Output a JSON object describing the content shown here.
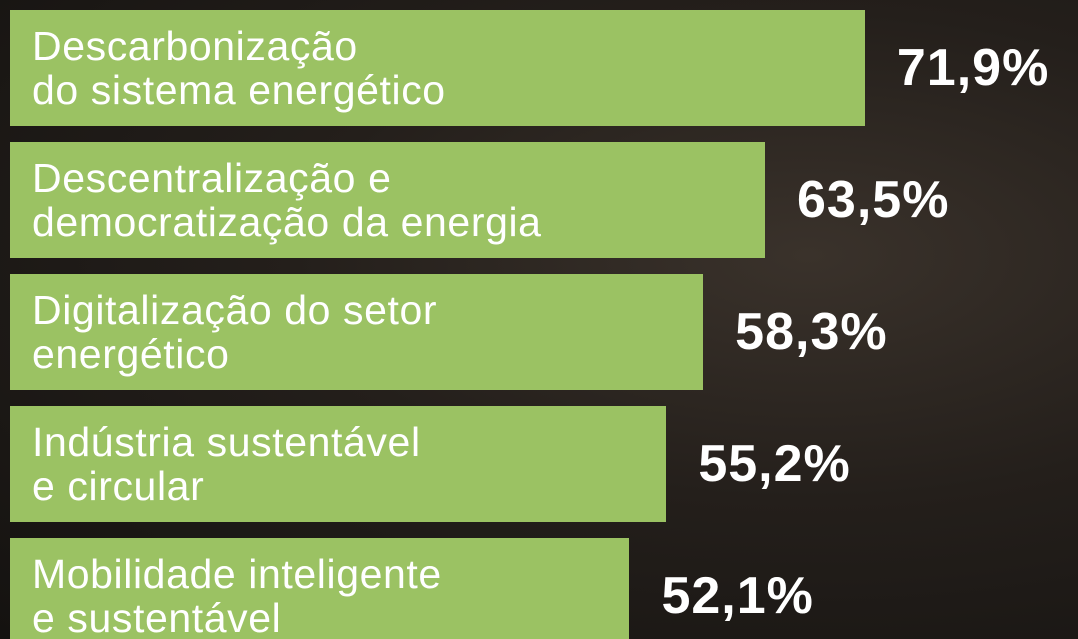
{
  "chart_data": {
    "type": "bar",
    "orientation": "horizontal",
    "color": "#9bc263",
    "categories": [
      "Descarbonização\ndo sistema energético",
      "Descentralização e\ndemocratização da energia",
      "Digitalização do setor\nenergético",
      "Indústria sustentável\ne circular",
      "Mobilidade inteligente\ne sustentável"
    ],
    "values": [
      71.9,
      63.5,
      58.3,
      55.2,
      52.1
    ],
    "value_labels": [
      "71,9%",
      "63,5%",
      "58,3%",
      "55,2%",
      "52,1%"
    ]
  }
}
